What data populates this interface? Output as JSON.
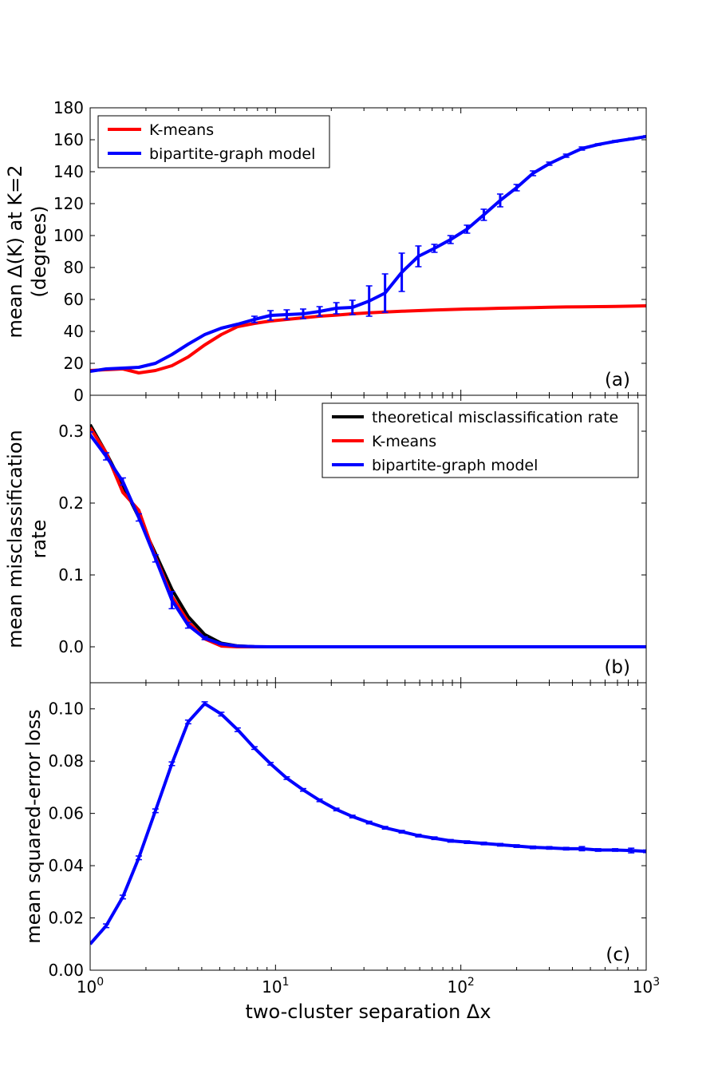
{
  "chart_data": [
    {
      "type": "line",
      "panel": "(a)",
      "ylabel_line1": "mean Δ(K) at K=2",
      "ylabel_line2": "(degrees)",
      "xscale": "log",
      "xlim": [
        1,
        1000
      ],
      "ylim": [
        0,
        180
      ],
      "yticks": [
        "0",
        "20",
        "40",
        "60",
        "80",
        "100",
        "120",
        "140",
        "160",
        "180"
      ],
      "legend_position": "top-left",
      "series": [
        {
          "name": "K-means",
          "color": "#ff0000",
          "x": [
            1,
            1.22,
            1.5,
            1.83,
            2.25,
            2.76,
            3.38,
            4.15,
            5.1,
            6.25,
            7.7,
            9.4,
            11.5,
            14.1,
            17.3,
            21.3,
            26,
            32,
            39,
            48,
            59,
            72,
            88,
            108,
            133,
            163,
            200,
            245,
            300,
            370,
            450,
            550,
            680,
            830,
            1000
          ],
          "y": [
            15.5,
            16,
            16.5,
            14,
            15.5,
            18.5,
            24,
            31.5,
            38,
            43,
            45,
            46.5,
            47.5,
            48.5,
            49.5,
            50.2,
            51,
            51.6,
            52.1,
            52.6,
            53,
            53.4,
            53.7,
            54,
            54.2,
            54.5,
            54.7,
            54.9,
            55.1,
            55.3,
            55.4,
            55.5,
            55.6,
            55.8,
            56
          ]
        },
        {
          "name": "bipartite-graph model",
          "color": "#0000ff",
          "x": [
            1,
            1.22,
            1.5,
            1.83,
            2.25,
            2.76,
            3.38,
            4.15,
            5.1,
            6.25,
            7.7,
            9.4,
            11.5,
            14.1,
            17.3,
            21.3,
            26,
            32,
            39,
            48,
            59,
            72,
            88,
            108,
            133,
            163,
            200,
            245,
            300,
            370,
            450,
            550,
            680,
            830,
            1000
          ],
          "y": [
            15,
            16.5,
            17,
            17.5,
            20,
            25.5,
            32,
            38,
            42,
            44.5,
            47.5,
            50,
            50.5,
            51,
            52.5,
            54.5,
            55,
            59,
            64,
            77,
            87,
            92,
            97.5,
            104,
            113,
            122,
            130,
            139,
            145,
            150,
            154.5,
            157,
            159,
            160.5,
            162
          ],
          "error": [
            0,
            0,
            0,
            0,
            0,
            0,
            0,
            0,
            0,
            0,
            2,
            3,
            3,
            3,
            3,
            3.5,
            4.5,
            9.5,
            12,
            12,
            6.5,
            2.5,
            2.5,
            2.5,
            3.5,
            4,
            2,
            1.5,
            1,
            1,
            1,
            0.5,
            0.5,
            0.5,
            0.5
          ]
        }
      ]
    },
    {
      "type": "line",
      "panel": "(b)",
      "ylabel_line1": "mean misclassification",
      "ylabel_line2": "rate",
      "xscale": "log",
      "xlim": [
        1,
        1000
      ],
      "ylim": [
        -0.05,
        0.35
      ],
      "yticks": [
        "0.0",
        "0.1",
        "0.2",
        "0.3"
      ],
      "legend_position": "top-right",
      "series": [
        {
          "name": "theoretical misclassification rate",
          "color": "#000000",
          "x": [
            1,
            1.22,
            1.5,
            1.83,
            2.25,
            2.76,
            3.38,
            4.15,
            5.1,
            6.25,
            7.7,
            9.4,
            11.5,
            20,
            50,
            100,
            300,
            1000
          ],
          "y": [
            0.309,
            0.27,
            0.225,
            0.18,
            0.13,
            0.08,
            0.042,
            0.017,
            0.005,
            0.0012,
            0.0002,
            0,
            0,
            0,
            0,
            0,
            0,
            0
          ]
        },
        {
          "name": "K-means",
          "color": "#ff0000",
          "x": [
            1,
            1.22,
            1.5,
            1.83,
            2.25,
            2.76,
            3.38,
            4.15,
            5.1,
            6.25,
            7.7,
            9.4,
            11.5,
            20,
            50,
            100,
            300,
            1000
          ],
          "y": [
            0.305,
            0.27,
            0.215,
            0.19,
            0.125,
            0.07,
            0.035,
            0.011,
            0.001,
            0,
            0,
            0,
            0,
            0,
            0,
            0,
            0,
            0
          ]
        },
        {
          "name": "bipartite-graph model",
          "color": "#0000ff",
          "x": [
            1,
            1.22,
            1.5,
            1.83,
            2.25,
            2.76,
            3.38,
            4.15,
            5.1,
            6.25,
            7.7,
            9.4,
            11.5,
            20,
            50,
            100,
            300,
            1000
          ],
          "y": [
            0.295,
            0.265,
            0.23,
            0.18,
            0.123,
            0.065,
            0.03,
            0.012,
            0.004,
            0.001,
            0.0003,
            0,
            0,
            0,
            0,
            0,
            0,
            0
          ],
          "error": [
            0.004,
            0.005,
            0.005,
            0.005,
            0.005,
            0.012,
            0.004,
            0.002,
            0.001,
            0,
            0,
            0,
            0,
            0,
            0,
            0,
            0,
            0
          ]
        }
      ]
    },
    {
      "type": "line",
      "panel": "(c)",
      "ylabel_line1": "mean squared-error loss",
      "xlabel": "two-cluster separation Δx",
      "xscale": "log",
      "xlim": [
        1,
        1000
      ],
      "xticks": [
        "10^0",
        "10^1",
        "10^2",
        "10^3"
      ],
      "ylim": [
        0,
        0.11
      ],
      "yticks": [
        "0.00",
        "0.02",
        "0.04",
        "0.06",
        "0.08",
        "0.10"
      ],
      "series": [
        {
          "name": "bipartite-graph model",
          "color": "#0000ff",
          "x": [
            1,
            1.22,
            1.5,
            1.83,
            2.25,
            2.76,
            3.38,
            4.15,
            5.1,
            6.25,
            7.7,
            9.4,
            11.5,
            14.1,
            17.3,
            21.3,
            26,
            32,
            39,
            48,
            59,
            72,
            88,
            108,
            133,
            163,
            200,
            245,
            300,
            370,
            450,
            550,
            680,
            830,
            1000
          ],
          "y": [
            0.01,
            0.017,
            0.028,
            0.043,
            0.061,
            0.079,
            0.095,
            0.102,
            0.098,
            0.092,
            0.085,
            0.079,
            0.0735,
            0.069,
            0.065,
            0.0615,
            0.0588,
            0.0565,
            0.0545,
            0.053,
            0.0515,
            0.0505,
            0.0495,
            0.049,
            0.0485,
            0.048,
            0.0475,
            0.047,
            0.0468,
            0.0465,
            0.0465,
            0.046,
            0.046,
            0.0458,
            0.0455
          ],
          "error": [
            0,
            0.0007,
            0.0007,
            0.0007,
            0.0007,
            0.0007,
            0.0007,
            0.0007,
            0.0007,
            0.0007,
            0.0005,
            0.0005,
            0.0005,
            0.0005,
            0.0005,
            0.0005,
            0.0005,
            0.0005,
            0.0005,
            0.0005,
            0.0005,
            0.0005,
            0.0005,
            0.0005,
            0.0005,
            0.0005,
            0.0005,
            0.0005,
            0.0005,
            0.0005,
            0.0008,
            0.0005,
            0.0005,
            0.0009,
            0.0005
          ]
        }
      ]
    }
  ]
}
